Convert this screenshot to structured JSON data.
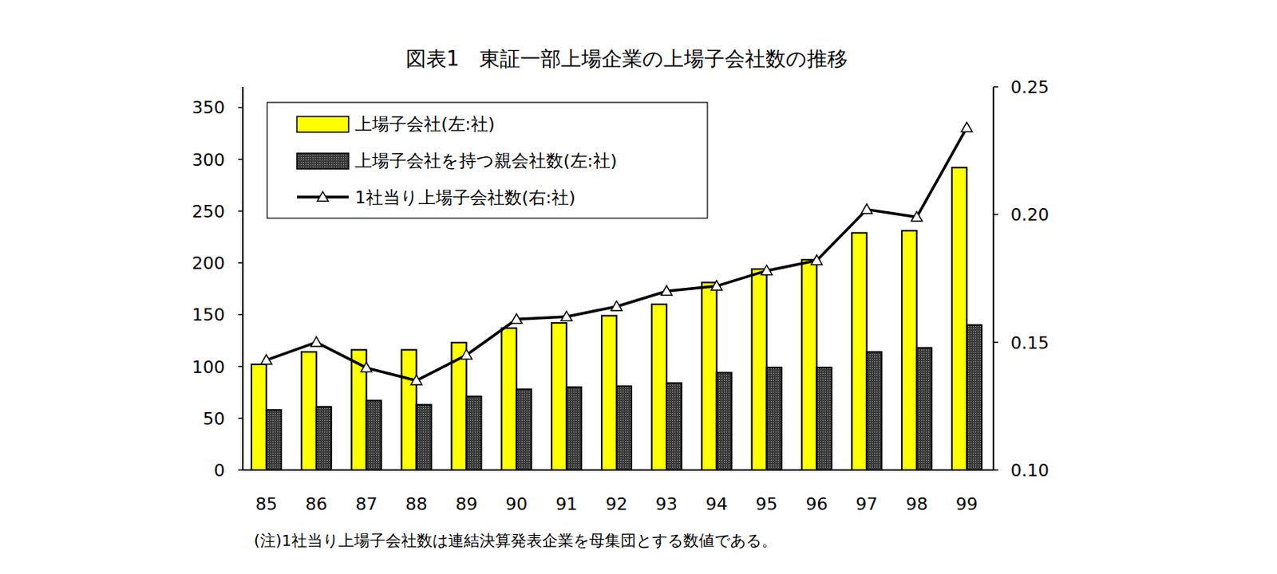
{
  "chart_data": {
    "type": "bar",
    "title": "図表1　東証一部上場企業の上場子会社数の推移",
    "note": "(注)1社当り上場子会社数は連結決算発表企業を母集団とする数値である。",
    "categories": [
      "85",
      "86",
      "87",
      "88",
      "89",
      "90",
      "91",
      "92",
      "93",
      "94",
      "95",
      "96",
      "97",
      "98",
      "99"
    ],
    "ylim": [
      0,
      370
    ],
    "yticks": [
      0,
      50,
      100,
      150,
      200,
      250,
      300,
      350
    ],
    "y2lim": [
      0.1,
      0.25
    ],
    "y2ticks": [
      {
        "value": 0.1,
        "label": "0.10"
      },
      0.15,
      {
        "value": 0.2,
        "label": "0.20"
      },
      0.25
    ],
    "grid": false,
    "legend": "top-left",
    "series": [
      {
        "name": "上場子会社(左:社)",
        "type": "bar",
        "color": "#ffff00",
        "values": [
          102,
          114,
          116,
          116,
          123,
          137,
          142,
          149,
          160,
          181,
          194,
          203,
          229,
          231,
          292
        ]
      },
      {
        "name": "上場子会社を持つ親会社数(左:社)",
        "type": "bar",
        "color": "#3a3a3a",
        "values": [
          58,
          61,
          67,
          63,
          71,
          78,
          80,
          81,
          84,
          94,
          99,
          99,
          114,
          118,
          140
        ]
      },
      {
        "name": "1社当り上場子会社数(右:社)",
        "type": "line",
        "axis": "y2",
        "color": "#000000",
        "marker": "triangle",
        "line_style": "solid",
        "values": [
          0.143,
          0.15,
          0.14,
          0.135,
          0.145,
          0.159,
          0.16,
          0.164,
          0.17,
          0.172,
          0.178,
          0.182,
          0.202,
          0.199,
          0.234
        ]
      }
    ]
  }
}
